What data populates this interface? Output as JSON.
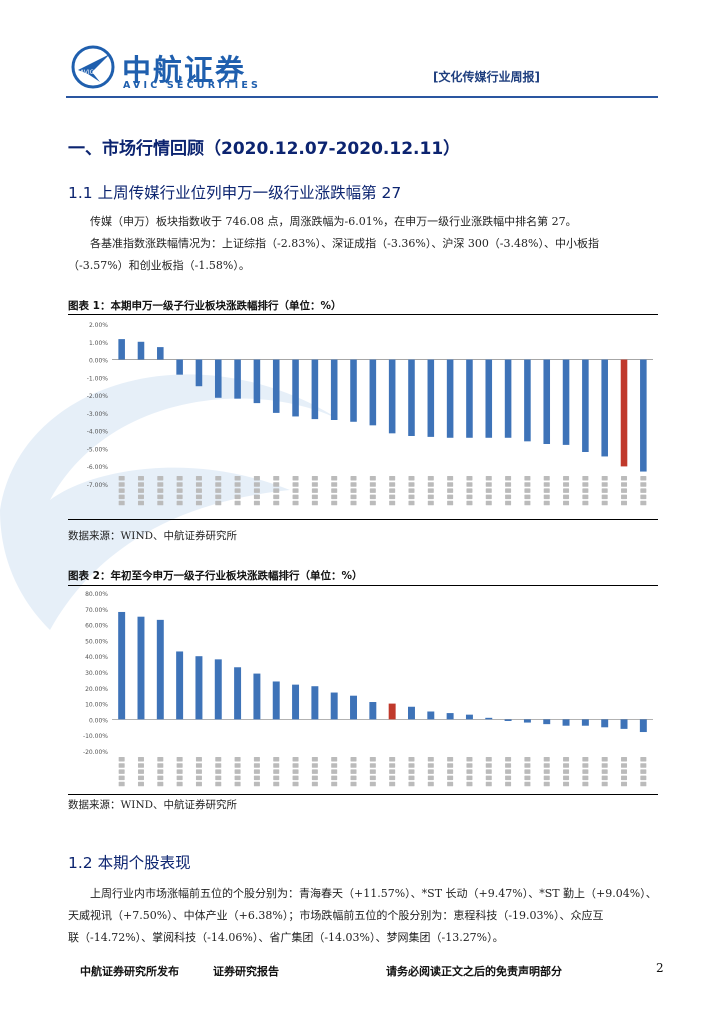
{
  "header": {
    "logo_cn": "中航证券",
    "logo_en": "AVIC SECURITIES",
    "report_tag": "[文化传媒行业周报]"
  },
  "section1": {
    "title": "一、市场行情回顾（2020.12.07-2020.12.11）",
    "sub1_title": "1.1 上周传媒行业位列申万一级行业涨跌幅第 27",
    "para1_line1": "传媒（申万）板块指数收于 746.08 点，周涨跌幅为-6.01%，在申万一级行业涨跌幅中排名第 27。",
    "para1_line2": "各基准指数涨跌幅情况为：上证综指（-2.83%）、深证成指（-3.36%）、沪深 300（-3.48%）、中小板指",
    "para1_line3": "（-3.57%）和创业板指（-1.58%）。",
    "fig1_title": "图表 1：本期申万一级子行业板块涨跌幅排行（单位：%）",
    "fig1_source": "数据来源：WIND、中航证券研究所",
    "fig2_title": "图表 2：年初至今申万一级子行业板块涨跌幅排行（单位：%）",
    "fig2_source": "数据来源：WIND、中航证券研究所",
    "sub2_title": "1.2 本期个股表现",
    "para2_line1": "上周行业内市场涨幅前五位的个股分别为：青海春天（+11.57%）、*ST 长动（+9.47%）、*ST 勤上（+9.04%）、",
    "para2_line2": "天威视讯（+7.50%）、中体产业（+6.38%）；市场跌幅前五位的个股分别为：恵程科技（-19.03%）、众应互",
    "para2_line3": "联（-14.72%）、掌阅科技（-14.06%）、省广集团（-14.03%）、梦网集团（-13.27%）。"
  },
  "footer": {
    "left1": "中航证券研究所发布",
    "left2": "证券研究报告",
    "right": "请务必阅读正文之后的免责声明部分",
    "page": "2"
  },
  "chart_data": [
    {
      "type": "bar",
      "title": "本期申万一级子行业板块涨跌幅排行（单位：%）",
      "ylim": [
        -7,
        2
      ],
      "ytick_labels": [
        "2.00%",
        "1.00%",
        "0.00%",
        "-1.00%",
        "-2.00%",
        "-3.00%",
        "-4.00%",
        "-5.00%",
        "-6.00%",
        "-7.00%"
      ],
      "yticks": [
        2,
        1,
        0,
        -1,
        -2,
        -3,
        -4,
        -5,
        -6,
        -7
      ],
      "categories": [
        "",
        "",
        "",
        "",
        "",
        "",
        "",
        "",
        "",
        "",
        "",
        "",
        "",
        "",
        "",
        "",
        "",
        "",
        "",
        "",
        "",
        "",
        "",
        "",
        "",
        "",
        "",
        ""
      ],
      "values": [
        1.15,
        1.0,
        0.7,
        -0.85,
        -1.5,
        -2.15,
        -2.2,
        -2.45,
        -3.0,
        -3.2,
        -3.35,
        -3.4,
        -3.5,
        -3.7,
        -4.15,
        -4.3,
        -4.35,
        -4.4,
        -4.4,
        -4.4,
        -4.4,
        -4.6,
        -4.75,
        -4.8,
        -5.2,
        -5.45,
        -6.01,
        -6.3
      ],
      "highlight_index": 26,
      "bar_color": "#3e73b8",
      "highlight_color": "#c0392b",
      "grid": false
    },
    {
      "type": "bar",
      "title": "年初至今申万一级子行业板块涨跌幅排行（单位：%）",
      "ylim": [
        -20,
        80
      ],
      "ytick_labels": [
        "80.00%",
        "70.00%",
        "60.00%",
        "50.00%",
        "40.00%",
        "30.00%",
        "20.00%",
        "10.00%",
        "0.00%",
        "-10.00%",
        "-20.00%"
      ],
      "yticks": [
        80,
        70,
        60,
        50,
        40,
        30,
        20,
        10,
        0,
        -10,
        -20
      ],
      "categories": [
        "",
        "",
        "",
        "",
        "",
        "",
        "",
        "",
        "",
        "",
        "",
        "",
        "",
        "",
        "",
        "",
        "",
        "",
        "",
        "",
        "",
        "",
        "",
        "",
        "",
        "",
        "",
        ""
      ],
      "values": [
        68,
        65,
        63,
        43,
        40,
        38,
        33,
        29,
        24,
        22,
        21,
        17,
        15,
        11,
        10,
        8,
        5,
        4,
        3,
        1,
        -1,
        -2,
        -3,
        -4,
        -4,
        -5,
        -6,
        -8
      ],
      "highlight_index": 14,
      "bar_color": "#3e73b8",
      "highlight_color": "#c0392b",
      "grid": false
    }
  ]
}
